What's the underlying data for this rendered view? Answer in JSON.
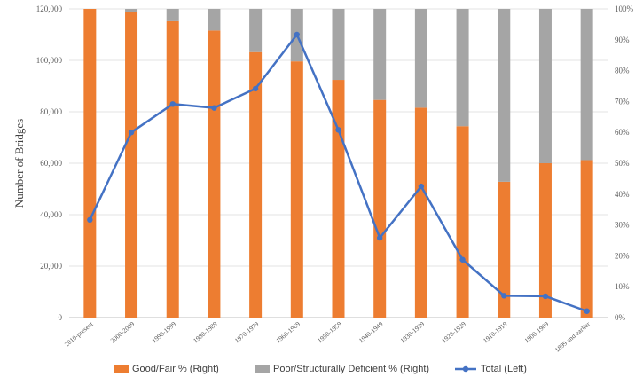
{
  "chart_data": {
    "type": "bar",
    "stacked": true,
    "categories": [
      "2010-present",
      "2000-2009",
      "1990-1999",
      "1980-1989",
      "1970-1979",
      "1960-1969",
      "1950-1959",
      "1940-1949",
      "1930-1939",
      "1920-1929",
      "1910-1919",
      "1900-1909",
      "1899 and earlier"
    ],
    "series": [
      {
        "name": "Good/Fair % (Right)",
        "axis": "right",
        "color": "#ED7D31",
        "values": [
          100,
          99,
          96,
          93,
          86,
          83,
          77,
          70.5,
          68,
          62,
          44,
          50,
          51
        ]
      },
      {
        "name": "Poor/Structurally Deficient % (Right)",
        "axis": "right",
        "color": "#A5A5A5",
        "values": [
          0,
          1,
          4,
          7,
          14,
          17,
          23,
          29.5,
          32,
          38,
          56,
          50,
          49
        ]
      },
      {
        "name": "Total (Left)",
        "axis": "left",
        "type": "line",
        "color": "#4472C4",
        "values": [
          38000,
          72000,
          83000,
          81500,
          89000,
          110000,
          73000,
          31000,
          51000,
          22500,
          8500,
          8300,
          2500
        ]
      }
    ],
    "ylabel": "Number of Bridges",
    "ylim": [
      0,
      120000
    ],
    "yticks": [
      "0",
      "20,000",
      "40,000",
      "60,000",
      "80,000",
      "100,000",
      "120,000"
    ],
    "y2lim": [
      0,
      100
    ],
    "y2ticks": [
      "0%",
      "10%",
      "20%",
      "30%",
      "40%",
      "50%",
      "60%",
      "70%",
      "80%",
      "90%",
      "100%"
    ],
    "legend_position": "bottom",
    "grid": true
  }
}
